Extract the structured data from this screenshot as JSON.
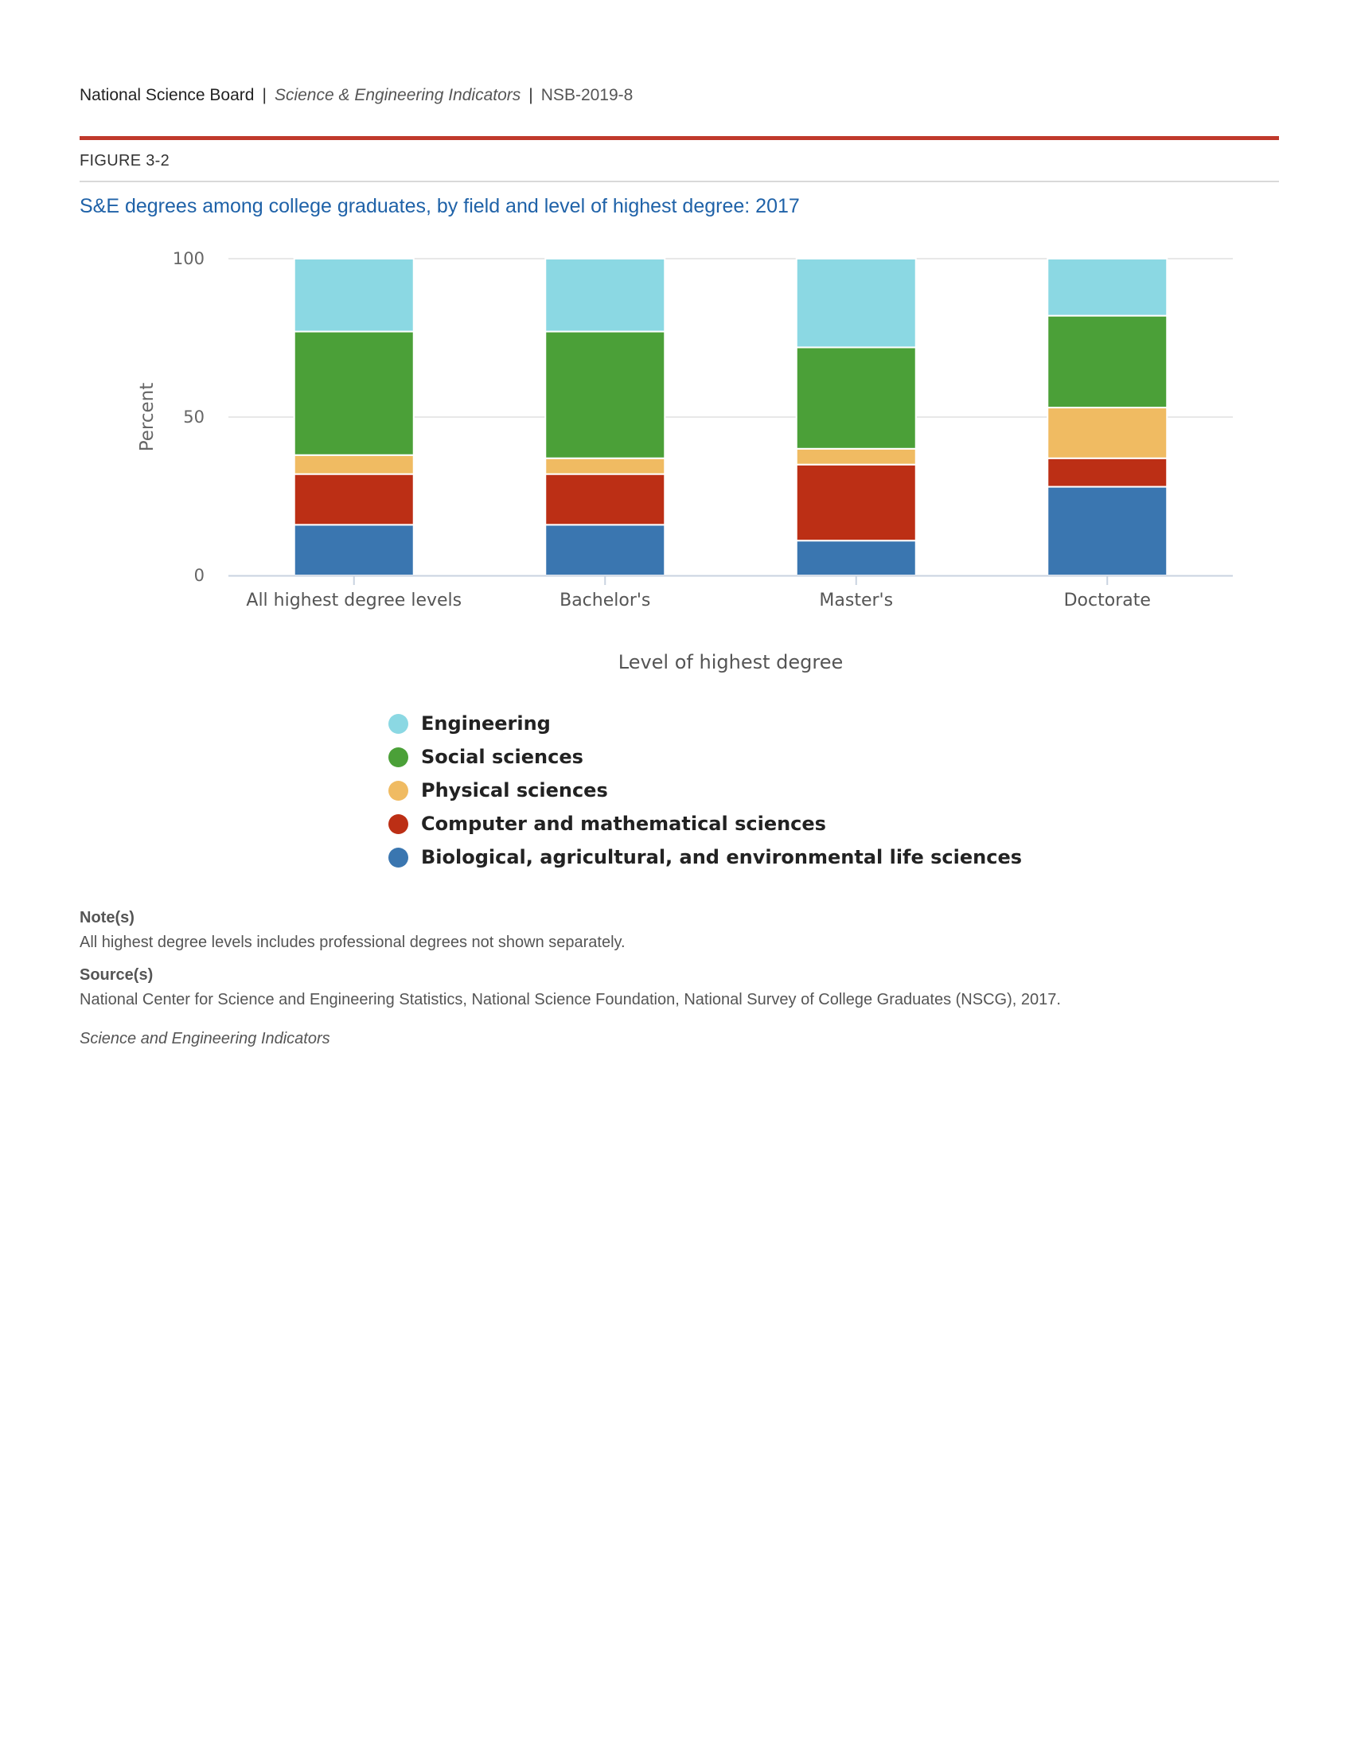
{
  "header": {
    "org": "National Science Board",
    "separator": "|",
    "publication": "Science & Engineering Indicators",
    "code": "NSB-2019-8"
  },
  "figure": {
    "label": "FIGURE 3-2",
    "title": "S&E degrees among college graduates, by field and level of highest degree: 2017"
  },
  "chart_data": {
    "type": "bar",
    "stacked": true,
    "title": "S&E degrees among college graduates, by field and level of highest degree: 2017",
    "xlabel": "Level of highest degree",
    "ylabel": "Percent",
    "ylim": [
      0,
      100
    ],
    "yticks": [
      0,
      50,
      100
    ],
    "grid": true,
    "legend_position": "bottom-center",
    "categories": [
      "All highest degree levels",
      "Bachelor's",
      "Master's",
      "Doctorate"
    ],
    "series": [
      {
        "name": "Biological, agricultural, and environmental life sciences",
        "color": "#3a76b0",
        "values": [
          16,
          16,
          11,
          28
        ]
      },
      {
        "name": "Computer and mathematical sciences",
        "color": "#bc2f15",
        "values": [
          16,
          16,
          24,
          9
        ]
      },
      {
        "name": "Physical sciences",
        "color": "#f0bb62",
        "values": [
          6,
          5,
          5,
          16
        ]
      },
      {
        "name": "Social sciences",
        "color": "#4ba038",
        "values": [
          39,
          40,
          32,
          29
        ]
      },
      {
        "name": "Engineering",
        "color": "#8bd8e3",
        "values": [
          23,
          23,
          28,
          18
        ]
      }
    ],
    "legend_order": [
      "Engineering",
      "Social sciences",
      "Physical sciences",
      "Computer and mathematical sciences",
      "Biological, agricultural, and environmental life sciences"
    ]
  },
  "notes": {
    "note_heading": "Note(s)",
    "note_text": "All highest degree levels includes professional degrees not shown separately.",
    "source_heading": "Source(s)",
    "source_text": "National Center for Science and Engineering Statistics, National Science Foundation, National Survey of College Graduates (NSCG), 2017.",
    "credit": "Science and Engineering Indicators"
  }
}
